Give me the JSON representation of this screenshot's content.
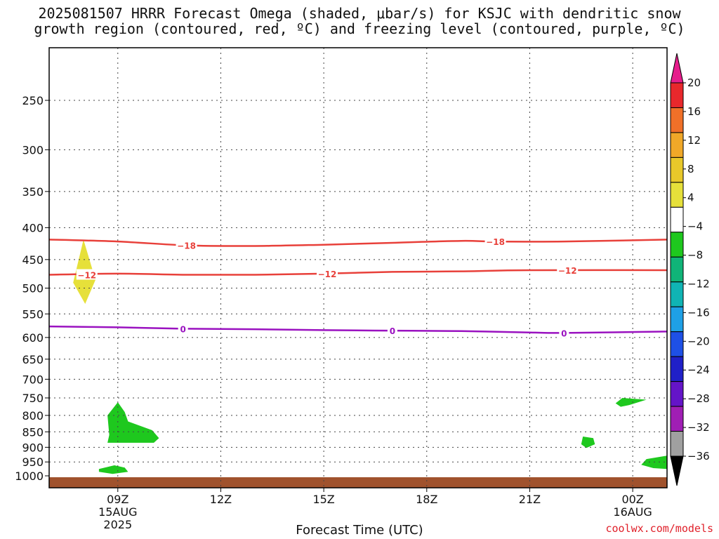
{
  "title_line1": "2025081507 HRRR Forecast Omega (shaded, μbar/s) for KSJC with dendritic snow",
  "title_line2": "growth region (contoured, red, ºC) and freezing level (contoured, purple, ºC)",
  "credit": "coolwx.com/models",
  "chart_data": {
    "type": "time-height cross section",
    "title": "2025081507 HRRR Forecast Omega (shaded, μbar/s) for KSJC with dendritic snow growth region (contoured, red, ºC) and freezing level (contoured, purple, ºC)",
    "xlabel": "Forecast Time (UTC)",
    "ylabel": "",
    "x_range_hours": [
      7,
      25
    ],
    "x_ticks": [
      {
        "hour": 9,
        "label": [
          "09Z",
          "15AUG",
          "2025"
        ]
      },
      {
        "hour": 12,
        "label": [
          "12Z"
        ]
      },
      {
        "hour": 15,
        "label": [
          "15Z"
        ]
      },
      {
        "hour": 18,
        "label": [
          "18Z"
        ]
      },
      {
        "hour": 21,
        "label": [
          "21Z"
        ]
      },
      {
        "hour": 24,
        "label": [
          "00Z",
          "16AUG"
        ]
      }
    ],
    "y_axis": "pressure (hPa), reversed",
    "y_range": [
      1000,
      200
    ],
    "y_ticks": [
      250,
      300,
      350,
      400,
      450,
      500,
      550,
      600,
      650,
      700,
      750,
      800,
      850,
      900,
      950,
      1000
    ],
    "colorbar": {
      "labels": [
        "20",
        "16",
        "12",
        "8",
        "4",
        "−4",
        "−8",
        "−12",
        "−16",
        "−20",
        "−24",
        "−28",
        "−32",
        "−36"
      ],
      "colors": [
        "#e61d8c",
        "#e8282c",
        "#f07028",
        "#f0a828",
        "#e8c82a",
        "#e6e03a",
        "#ffffff",
        "#1ec81e",
        "#10b478",
        "#10b4b4",
        "#1ea0e6",
        "#1e50e6",
        "#2020c8",
        "#6414c8",
        "#a01eb4",
        "#a0a0a0",
        "#000000"
      ]
    },
    "contours": [
      {
        "label": "-18",
        "color": "#e8403a",
        "points": [
          [
            7.0,
            418
          ],
          [
            9.0,
            421
          ],
          [
            11.0,
            427
          ],
          [
            13.0,
            428
          ],
          [
            15.0,
            426
          ],
          [
            17.0,
            423
          ],
          [
            19.0,
            420
          ],
          [
            20.0,
            421
          ],
          [
            22.0,
            421
          ],
          [
            25.0,
            418
          ]
        ]
      },
      {
        "label": "-12",
        "color": "#e8403a",
        "points": [
          [
            7.0,
            476
          ],
          [
            9.0,
            474
          ],
          [
            11.0,
            476
          ],
          [
            13.0,
            476
          ],
          [
            15.0,
            474
          ],
          [
            17.0,
            471
          ],
          [
            19.0,
            470
          ],
          [
            21.0,
            468
          ],
          [
            25.0,
            468
          ]
        ]
      },
      {
        "label": "0",
        "color": "#9a12c0",
        "points": [
          [
            7.0,
            576
          ],
          [
            9.0,
            578
          ],
          [
            11.0,
            581
          ],
          [
            13.0,
            582
          ],
          [
            15.0,
            584
          ],
          [
            17.0,
            585
          ],
          [
            19.0,
            586
          ],
          [
            21.0,
            589
          ],
          [
            22.0,
            590
          ],
          [
            25.0,
            587
          ]
        ]
      }
    ],
    "contour_label_positions": [
      {
        "label": "-18",
        "points": [
          [
            11.0,
            427
          ],
          [
            20.0,
            421
          ]
        ]
      },
      {
        "label": "-12",
        "points": [
          [
            8.1,
            476
          ],
          [
            15.1,
            474
          ],
          [
            22.1,
            468
          ]
        ]
      },
      {
        "label": "0",
        "points": [
          [
            10.9,
            581
          ],
          [
            17.0,
            585
          ],
          [
            22.0,
            590
          ]
        ]
      }
    ],
    "omega_regions": [
      {
        "value_range": "4 to 8",
        "color": "#e6e03a",
        "points": [
          [
            8.0,
            418
          ],
          [
            8.35,
            485
          ],
          [
            8.05,
            530
          ],
          [
            7.7,
            490
          ]
        ]
      },
      {
        "value_range": "-8 to -4",
        "color": "#1ec81e",
        "points": [
          [
            9.0,
            762
          ],
          [
            9.2,
            790
          ],
          [
            9.3,
            818
          ],
          [
            10.0,
            845
          ],
          [
            10.2,
            870
          ],
          [
            10.05,
            885
          ],
          [
            8.7,
            885
          ],
          [
            8.75,
            860
          ],
          [
            8.7,
            800
          ]
        ]
      },
      {
        "value_range": "-8 to -4",
        "color": "#1ec81e",
        "points": [
          [
            8.45,
            975
          ],
          [
            8.9,
            962
          ],
          [
            9.2,
            970
          ],
          [
            9.3,
            985
          ],
          [
            8.85,
            993
          ],
          [
            8.45,
            985
          ]
        ]
      },
      {
        "value_range": "-8 to -4",
        "color": "#1ec81e",
        "points": [
          [
            23.7,
            750
          ],
          [
            24.4,
            755
          ],
          [
            23.9,
            770
          ],
          [
            23.65,
            775
          ],
          [
            23.5,
            765
          ]
        ]
      },
      {
        "value_range": "-8 to -4",
        "color": "#1ec81e",
        "points": [
          [
            22.55,
            865
          ],
          [
            22.85,
            870
          ],
          [
            22.9,
            890
          ],
          [
            22.65,
            902
          ],
          [
            22.5,
            890
          ]
        ]
      },
      {
        "value_range": "-8 to -4",
        "color": "#1ec81e",
        "points": [
          [
            25.0,
            928
          ],
          [
            24.4,
            940
          ],
          [
            24.25,
            960
          ],
          [
            24.6,
            972
          ],
          [
            25.0,
            975
          ]
        ]
      }
    ],
    "ground_color": "#a0522d"
  }
}
